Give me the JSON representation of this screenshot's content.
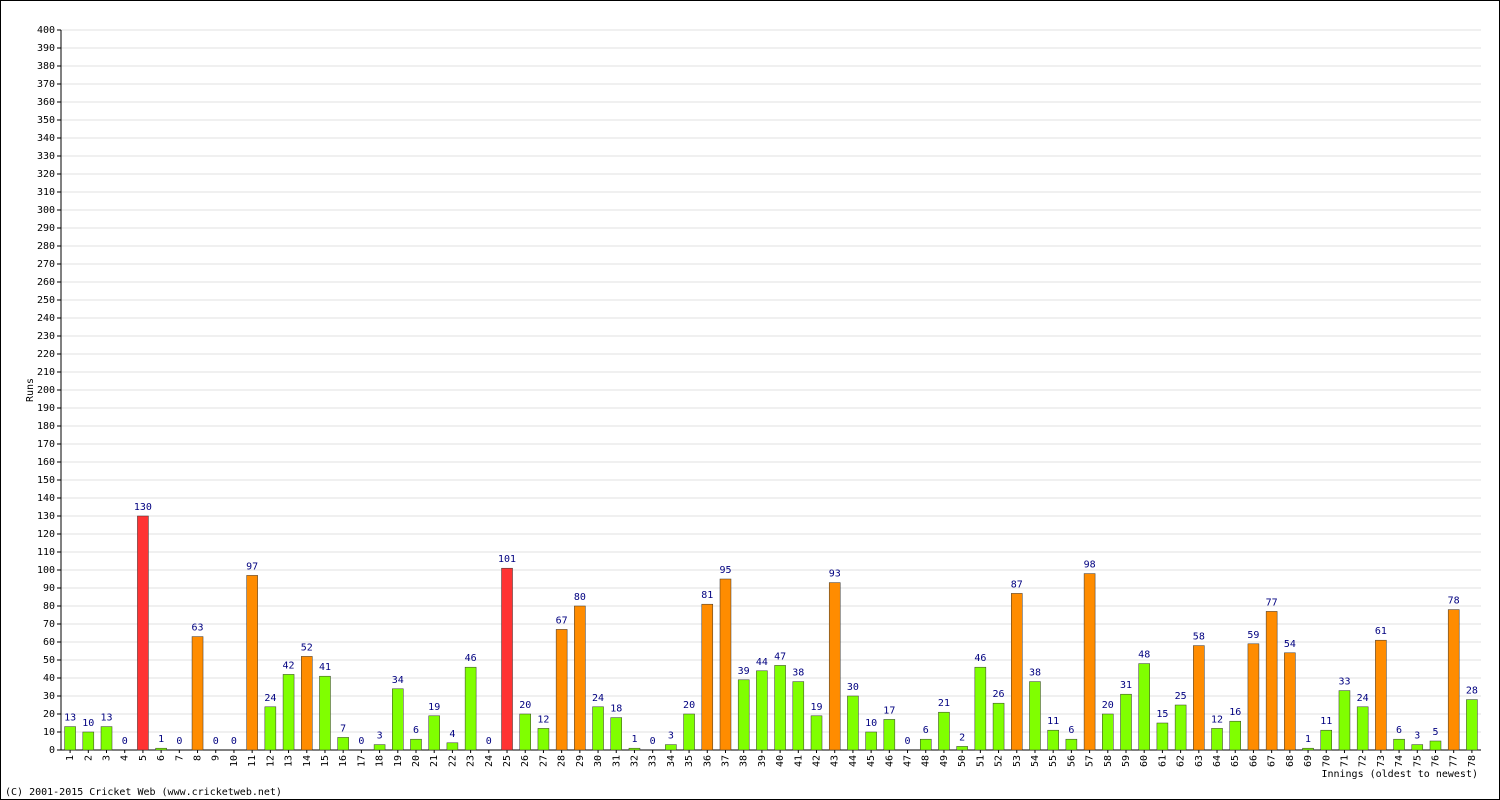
{
  "chart_data": {
    "type": "bar",
    "y_label": "Runs",
    "x_label": "Innings (oldest to newest)",
    "footer": "(C) 2001-2015 Cricket Web (www.cricketweb.net)",
    "categories": [
      "1",
      "2",
      "3",
      "4",
      "5",
      "6",
      "7",
      "8",
      "9",
      "10",
      "11",
      "12",
      "13",
      "14",
      "15",
      "16",
      "17",
      "18",
      "19",
      "20",
      "21",
      "22",
      "23",
      "24",
      "25",
      "26",
      "27",
      "28",
      "29",
      "30",
      "31",
      "32",
      "33",
      "34",
      "35",
      "36",
      "37",
      "38",
      "39",
      "40",
      "41",
      "42",
      "43",
      "44",
      "45",
      "46",
      "47",
      "48",
      "49",
      "50",
      "51",
      "52",
      "53",
      "54",
      "55",
      "56",
      "57",
      "58",
      "59",
      "60",
      "61",
      "62",
      "63",
      "64",
      "65",
      "66",
      "67",
      "68",
      "69",
      "70",
      "71",
      "72",
      "73",
      "74",
      "75",
      "76",
      "77",
      "78"
    ],
    "values": [
      13,
      10,
      13,
      0,
      130,
      1,
      0,
      63,
      0,
      0,
      97,
      24,
      42,
      52,
      41,
      7,
      0,
      3,
      34,
      6,
      19,
      4,
      46,
      0,
      101,
      20,
      12,
      67,
      80,
      24,
      18,
      1,
      0,
      3,
      20,
      81,
      95,
      39,
      44,
      47,
      38,
      19,
      93,
      30,
      10,
      17,
      0,
      6,
      21,
      2,
      46,
      26,
      87,
      38,
      11,
      6,
      98,
      20,
      31,
      48,
      15,
      25,
      58,
      12,
      16,
      59,
      77,
      54,
      1,
      11,
      33,
      24,
      61,
      6,
      3,
      5,
      78,
      28
    ],
    "colors": [
      "#80ff00",
      "#80ff00",
      "#80ff00",
      "#80ff00",
      "#ff3333",
      "#80ff00",
      "#80ff00",
      "#ff8c00",
      "#80ff00",
      "#80ff00",
      "#ff8c00",
      "#80ff00",
      "#80ff00",
      "#ff8c00",
      "#80ff00",
      "#80ff00",
      "#80ff00",
      "#80ff00",
      "#80ff00",
      "#80ff00",
      "#80ff00",
      "#80ff00",
      "#80ff00",
      "#80ff00",
      "#ff3333",
      "#80ff00",
      "#80ff00",
      "#ff8c00",
      "#ff8c00",
      "#80ff00",
      "#80ff00",
      "#80ff00",
      "#80ff00",
      "#80ff00",
      "#80ff00",
      "#ff8c00",
      "#ff8c00",
      "#80ff00",
      "#80ff00",
      "#80ff00",
      "#80ff00",
      "#80ff00",
      "#ff8c00",
      "#80ff00",
      "#80ff00",
      "#80ff00",
      "#80ff00",
      "#80ff00",
      "#80ff00",
      "#80ff00",
      "#80ff00",
      "#80ff00",
      "#ff8c00",
      "#80ff00",
      "#80ff00",
      "#80ff00",
      "#ff8c00",
      "#80ff00",
      "#80ff00",
      "#80ff00",
      "#80ff00",
      "#80ff00",
      "#ff8c00",
      "#80ff00",
      "#80ff00",
      "#ff8c00",
      "#ff8c00",
      "#ff8c00",
      "#80ff00",
      "#80ff00",
      "#80ff00",
      "#80ff00",
      "#ff8c00",
      "#80ff00",
      "#80ff00",
      "#80ff00",
      "#ff8c00",
      "#80ff00"
    ],
    "ylim": [
      0,
      400
    ],
    "yticks": [
      0,
      10,
      20,
      30,
      40,
      50,
      60,
      70,
      80,
      90,
      100,
      110,
      120,
      130,
      140,
      150,
      160,
      170,
      180,
      190,
      200,
      210,
      220,
      230,
      240,
      250,
      260,
      270,
      280,
      290,
      300,
      310,
      320,
      330,
      340,
      350,
      360,
      370,
      380,
      390,
      400
    ],
    "grid": true
  }
}
